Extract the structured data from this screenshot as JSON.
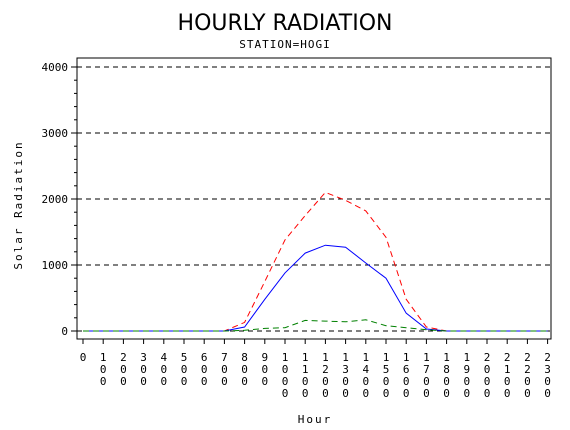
{
  "chart_data": {
    "type": "line",
    "title": "HOURLY RADIATION",
    "subtitle": "STATION=HOGI",
    "xlabel": "Hour",
    "ylabel": "Solar Radiation",
    "ylim": [
      0,
      4000
    ],
    "y_ticks": [
      0,
      1000,
      2000,
      3000,
      4000
    ],
    "grid": "horizontal dashed",
    "x": [
      0,
      100,
      200,
      300,
      400,
      500,
      600,
      700,
      800,
      900,
      1000,
      1100,
      1200,
      1300,
      1400,
      1500,
      1600,
      1700,
      1800,
      1900,
      2000,
      2100,
      2200,
      2300
    ],
    "x_tick_labels": [
      "0",
      "100",
      "200",
      "300",
      "400",
      "500",
      "600",
      "700",
      "800",
      "900",
      "1000",
      "1100",
      "1200",
      "1300",
      "1400",
      "1500",
      "1600",
      "1700",
      "1800",
      "1900",
      "2000",
      "2100",
      "2200",
      "2300"
    ],
    "series": [
      {
        "color": "#ff0000",
        "style": "dashed",
        "values": [
          0,
          0,
          0,
          0,
          0,
          0,
          0,
          0,
          130,
          750,
          1380,
          1750,
          2100,
          1980,
          1820,
          1420,
          480,
          60,
          0,
          0,
          0,
          0,
          0,
          0
        ]
      },
      {
        "color": "#0000ff",
        "style": "solid",
        "values": [
          0,
          0,
          0,
          0,
          0,
          0,
          0,
          0,
          60,
          480,
          880,
          1180,
          1300,
          1270,
          1030,
          800,
          270,
          30,
          0,
          0,
          0,
          0,
          0,
          0
        ]
      },
      {
        "color": "#008000",
        "style": "dashed",
        "values": [
          0,
          0,
          0,
          0,
          0,
          0,
          0,
          0,
          10,
          40,
          50,
          160,
          150,
          140,
          170,
          80,
          50,
          20,
          0,
          0,
          0,
          0,
          0,
          0
        ]
      }
    ]
  }
}
